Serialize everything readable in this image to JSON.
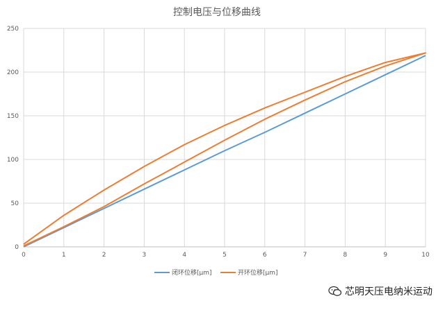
{
  "chart_data": {
    "type": "line",
    "title": "控制电压与位移曲线",
    "xlabel": "",
    "ylabel": "",
    "xlim": [
      0,
      10
    ],
    "ylim": [
      0,
      250
    ],
    "x_ticks": [
      0,
      1,
      2,
      3,
      4,
      5,
      6,
      7,
      8,
      9,
      10
    ],
    "y_ticks": [
      0,
      50,
      100,
      150,
      200,
      250
    ],
    "grid": true,
    "legend_position": "bottom-center",
    "series": [
      {
        "name": "闭环位移[μm]",
        "color": "#5b9bd5",
        "x": [
          0,
          1,
          2,
          3,
          4,
          5,
          6,
          7,
          8,
          9,
          10
        ],
        "y": [
          0,
          22,
          44,
          66,
          88,
          110,
          131,
          153,
          175,
          197,
          219
        ]
      },
      {
        "name": "开环位移[μm]",
        "color": "#ed7d31",
        "points": [
          [
            0,
            1
          ],
          [
            1,
            23
          ],
          [
            2,
            46
          ],
          [
            3,
            72
          ],
          [
            4,
            97
          ],
          [
            5,
            122
          ],
          [
            6,
            146
          ],
          [
            7,
            168
          ],
          [
            8,
            189
          ],
          [
            9,
            207
          ],
          [
            10,
            222
          ],
          [
            9,
            211
          ],
          [
            8,
            195
          ],
          [
            7,
            177
          ],
          [
            6,
            159
          ],
          [
            5,
            139
          ],
          [
            4,
            117
          ],
          [
            3,
            92
          ],
          [
            2,
            65
          ],
          [
            1,
            36
          ],
          [
            0,
            3
          ]
        ]
      }
    ]
  },
  "watermark": {
    "text": "芯明天压电纳米运动",
    "icon": "wechat-icon"
  }
}
